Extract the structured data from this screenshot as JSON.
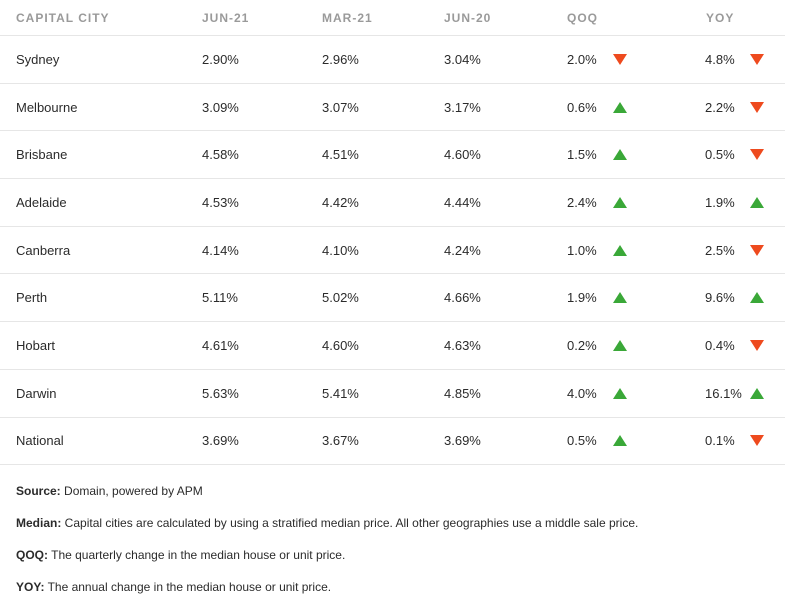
{
  "table": {
    "headers": {
      "city": "CAPITAL CITY",
      "jun21": "JUN-21",
      "mar21": "MAR-21",
      "jun20": "JUN-20",
      "qoq": "QOQ",
      "yoy": "YOY"
    },
    "rows": [
      {
        "city": "Sydney",
        "jun21": "2.90%",
        "mar21": "2.96%",
        "jun20": "3.04%",
        "qoq": "2.0%",
        "qoq_dir": "down",
        "yoy": "4.8%",
        "yoy_dir": "down"
      },
      {
        "city": "Melbourne",
        "jun21": "3.09%",
        "mar21": "3.07%",
        "jun20": "3.17%",
        "qoq": "0.6%",
        "qoq_dir": "up",
        "yoy": "2.2%",
        "yoy_dir": "down"
      },
      {
        "city": "Brisbane",
        "jun21": "4.58%",
        "mar21": "4.51%",
        "jun20": "4.60%",
        "qoq": "1.5%",
        "qoq_dir": "up",
        "yoy": "0.5%",
        "yoy_dir": "down"
      },
      {
        "city": "Adelaide",
        "jun21": "4.53%",
        "mar21": "4.42%",
        "jun20": "4.44%",
        "qoq": "2.4%",
        "qoq_dir": "up",
        "yoy": "1.9%",
        "yoy_dir": "up"
      },
      {
        "city": "Canberra",
        "jun21": "4.14%",
        "mar21": "4.10%",
        "jun20": "4.24%",
        "qoq": "1.0%",
        "qoq_dir": "up",
        "yoy": "2.5%",
        "yoy_dir": "down"
      },
      {
        "city": "Perth",
        "jun21": "5.11%",
        "mar21": "5.02%",
        "jun20": "4.66%",
        "qoq": "1.9%",
        "qoq_dir": "up",
        "yoy": "9.6%",
        "yoy_dir": "up"
      },
      {
        "city": "Hobart",
        "jun21": "4.61%",
        "mar21": "4.60%",
        "jun20": "4.63%",
        "qoq": "0.2%",
        "qoq_dir": "up",
        "yoy": "0.4%",
        "yoy_dir": "down"
      },
      {
        "city": "Darwin",
        "jun21": "5.63%",
        "mar21": "5.41%",
        "jun20": "4.85%",
        "qoq": "4.0%",
        "qoq_dir": "up",
        "yoy": "16.1%",
        "yoy_dir": "up"
      },
      {
        "city": "National",
        "jun21": "3.69%",
        "mar21": "3.67%",
        "jun20": "3.69%",
        "qoq": "0.5%",
        "qoq_dir": "up",
        "yoy": "0.1%",
        "yoy_dir": "down"
      }
    ]
  },
  "colors": {
    "up": "#3aa838",
    "down": "#ee4a1e",
    "header_text": "#9a9a9a"
  },
  "icons": {
    "up": "triangle-up-icon",
    "down": "triangle-down-icon"
  },
  "notes": [
    {
      "label": "Source:",
      "text": " Domain, powered by APM"
    },
    {
      "label": "Median:",
      "text": " Capital cities are calculated by using a stratified median price. All other geographies use a middle sale price."
    },
    {
      "label": "QOQ:",
      "text": " The quarterly change in the median house or unit price."
    },
    {
      "label": "YOY:",
      "text": " The annual change in the median house or unit price."
    }
  ]
}
